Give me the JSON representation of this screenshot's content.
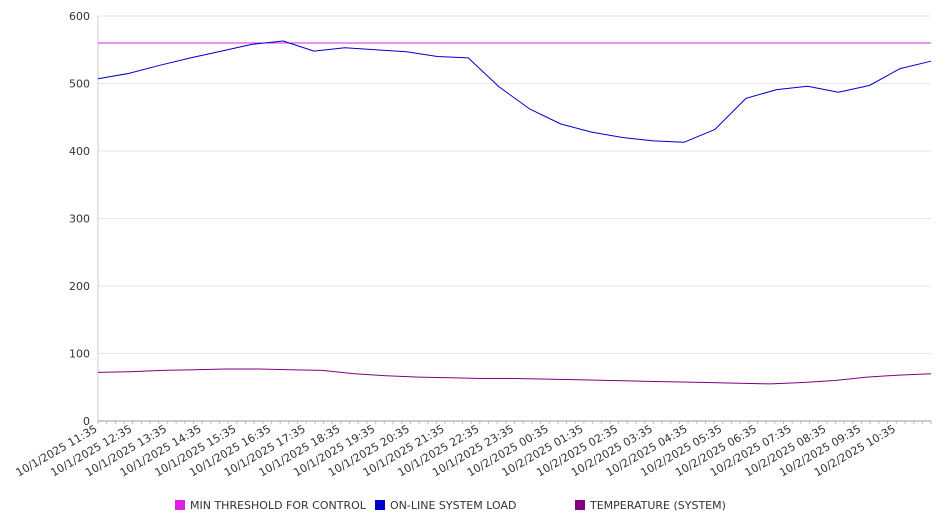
{
  "chart_data": {
    "type": "line",
    "y_ticks": [
      0,
      100,
      200,
      300,
      400,
      500,
      600
    ],
    "ylim": [
      0,
      600
    ],
    "x_ticks": [
      "10/1/2025 11:35",
      "10/1/2025 12:35",
      "10/1/2025 13:35",
      "10/1/2025 14:35",
      "10/1/2025 15:35",
      "10/1/2025 16:35",
      "10/1/2025 17:35",
      "10/1/2025 18:35",
      "10/1/2025 19:35",
      "10/1/2025 20:35",
      "10/1/2025 21:35",
      "10/1/2025 22:35",
      "10/1/2025 23:35",
      "10/2/2025 00:35",
      "10/2/2025 01:35",
      "10/2/2025 02:35",
      "10/2/2025 03:35",
      "10/2/2025 04:35",
      "10/2/2025 05:35",
      "10/2/2025 06:35",
      "10/2/2025 07:35",
      "10/2/2025 08:35",
      "10/2/2025 09:35",
      "10/2/2025 10:35"
    ],
    "grid": true,
    "legend_position": "bottom",
    "series": [
      {
        "name": "MIN THRESHOLD FOR CONTROL",
        "color": "#e020e0",
        "values": [
          560,
          560,
          560,
          560,
          560,
          560,
          560,
          560,
          560,
          560,
          560,
          560,
          560,
          560,
          560,
          560,
          560,
          560,
          560,
          560,
          560,
          560,
          560,
          560,
          560
        ]
      },
      {
        "name": "ON-LINE SYSTEM LOAD",
        "color": "#0000cc",
        "values": [
          507,
          515,
          527,
          538,
          548,
          558,
          563,
          548,
          553,
          550,
          547,
          540,
          538,
          495,
          462,
          440,
          428,
          420,
          415,
          413,
          432,
          478,
          491,
          496,
          487,
          497,
          522,
          533
        ]
      },
      {
        "name": "TEMPERATURE (SYSTEM)",
        "color": "#800080",
        "values": [
          72,
          73,
          75,
          76,
          77,
          77,
          76,
          75,
          70,
          67,
          65,
          64,
          63,
          63,
          62,
          61,
          60,
          59,
          58,
          57,
          56,
          55,
          57,
          60,
          65,
          68,
          70
        ]
      }
    ]
  }
}
